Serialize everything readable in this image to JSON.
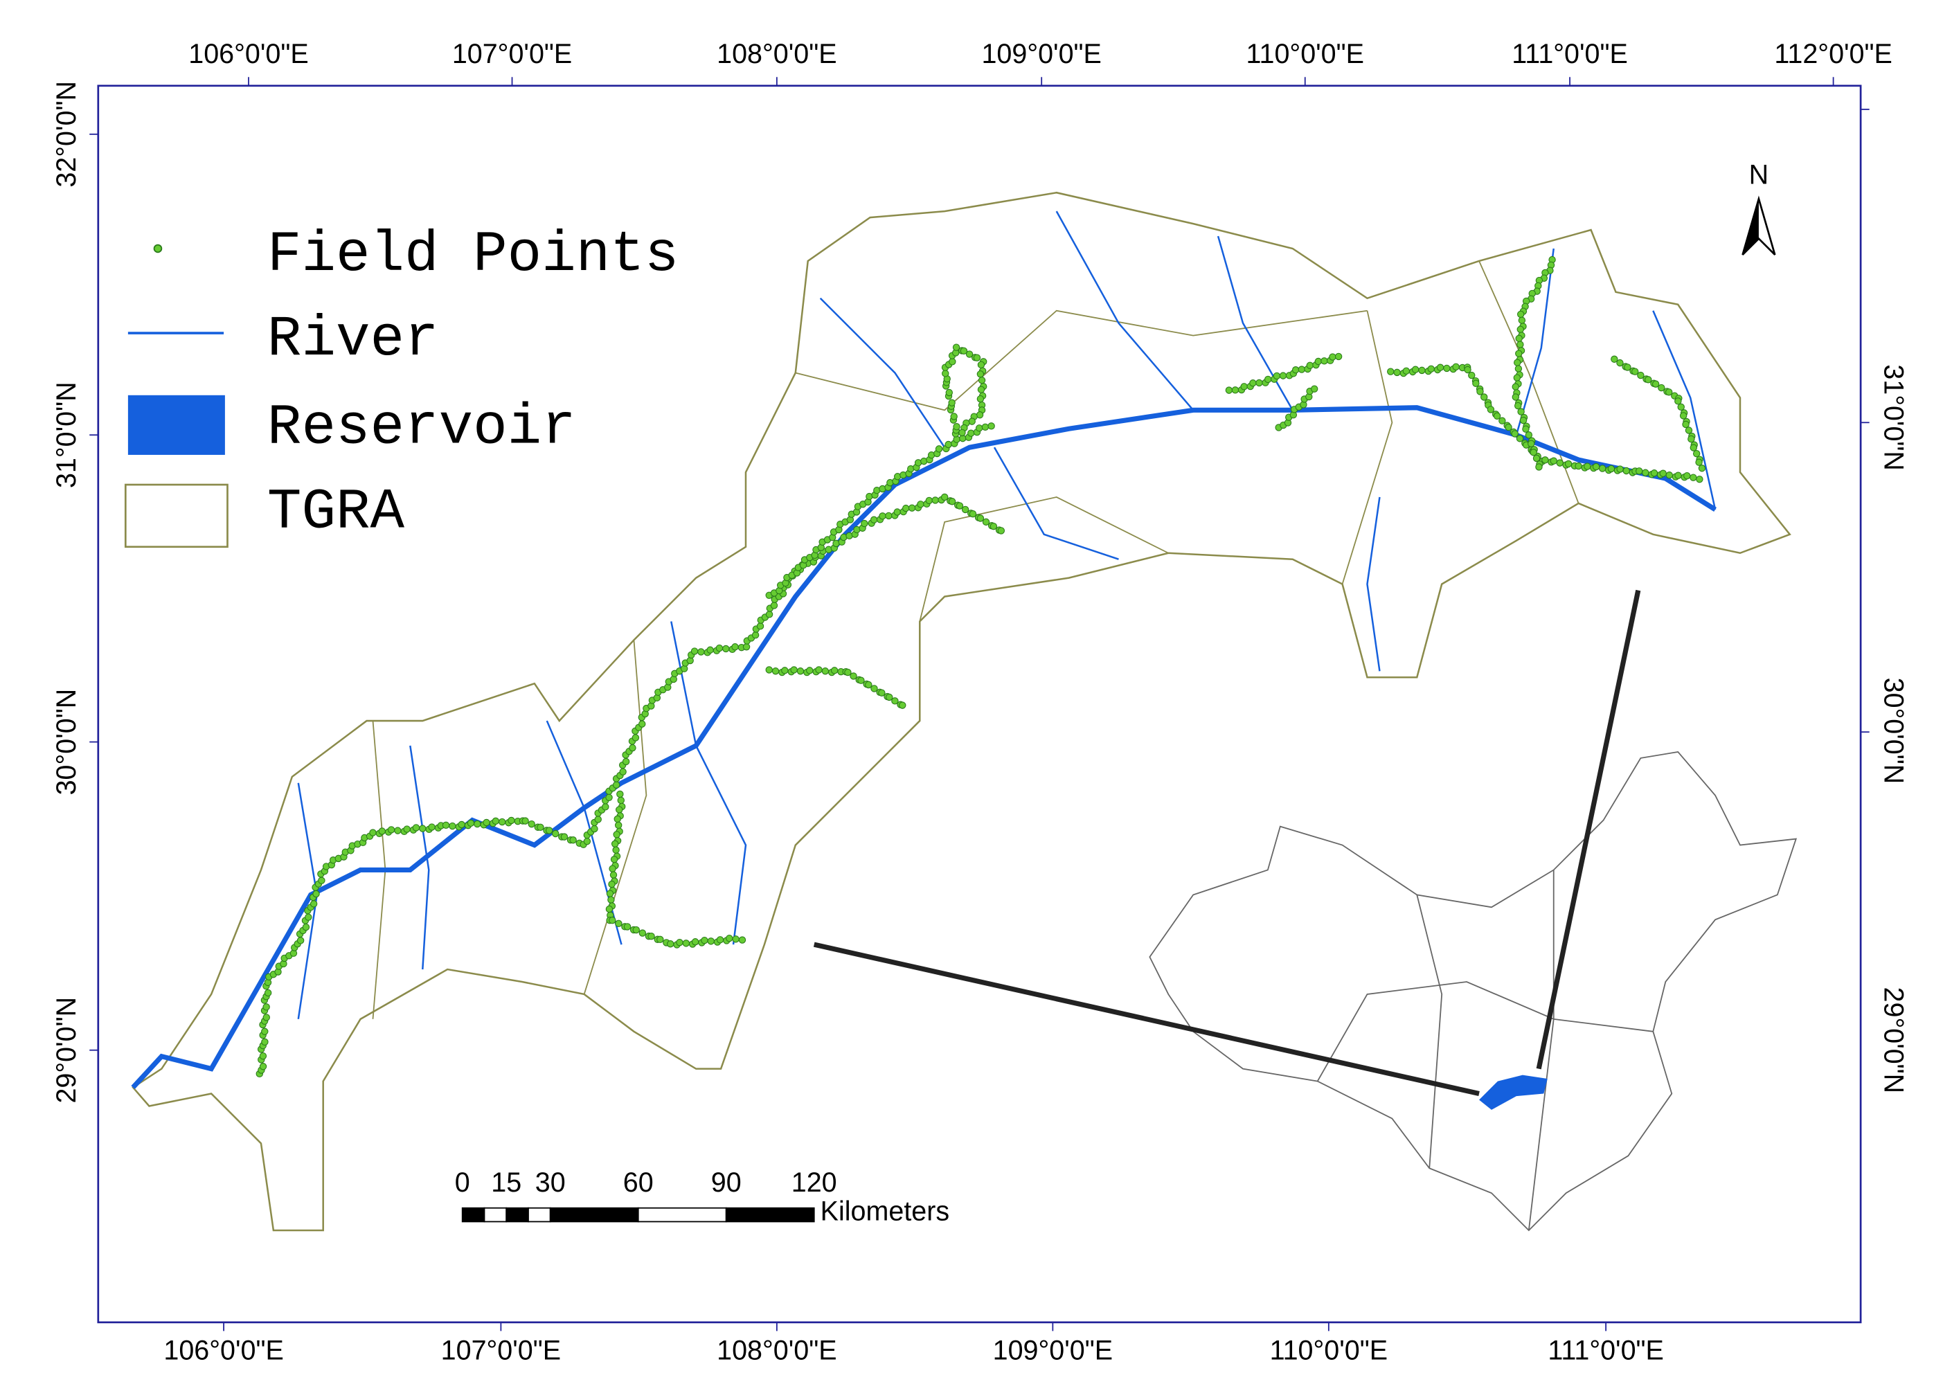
{
  "map": {
    "top_labels": [
      "106°0'0\"E",
      "107°0'0\"E",
      "108°0'0\"E",
      "109°0'0\"E",
      "110°0'0\"E",
      "111°0'0\"E",
      "112°0'0\"E"
    ],
    "bottom_labels": [
      "106°0'0\"E",
      "107°0'0\"E",
      "108°0'0\"E",
      "109°0'0\"E",
      "110°0'0\"E",
      "111°0'0\"E"
    ],
    "left_labels": [
      "32°0'0\"N",
      "31°0'0\"N",
      "30°0'0\"N",
      "29°0'0\"N"
    ],
    "right_labels": [
      "31°0'0\"N",
      "30°0'0\"N",
      "29°0'0\"N"
    ],
    "legend": [
      "Field Points",
      "River",
      "Reservoir",
      "TGRA"
    ],
    "north": "N",
    "scale_bar": {
      "ticks": [
        0,
        15,
        30,
        60,
        90,
        120
      ],
      "unit": "Kilometers"
    }
  }
}
